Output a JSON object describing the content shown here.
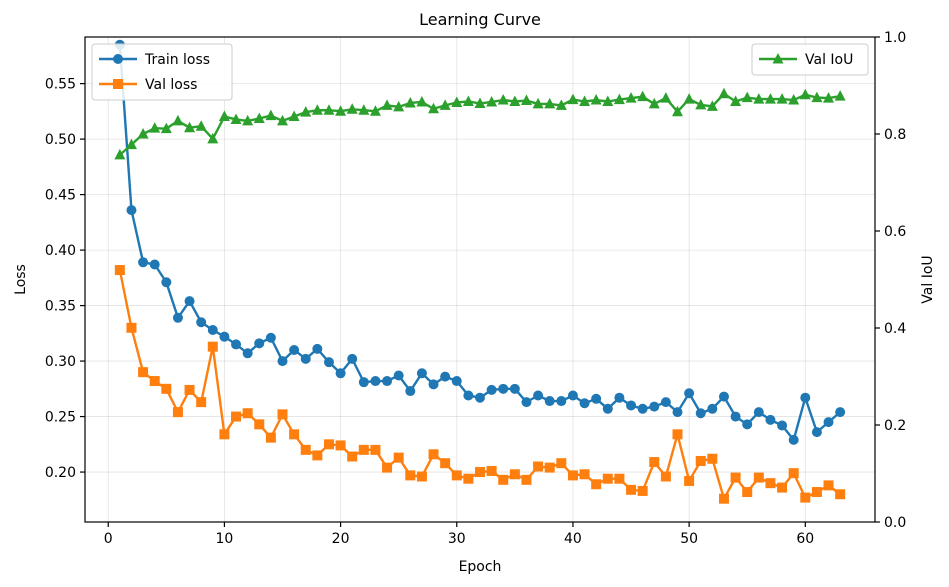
{
  "chart_data": {
    "type": "line",
    "title": "Learning Curve",
    "xlabel": "Epoch",
    "ylabel": "Loss",
    "y2label": "Val IoU",
    "xlim": [
      -2,
      66
    ],
    "ylim": [
      0.155,
      0.592
    ],
    "y2lim": [
      0.0,
      1.0
    ],
    "xticks": [
      0,
      10,
      20,
      30,
      40,
      50,
      60
    ],
    "yticks": [
      0.2,
      0.25,
      0.3,
      0.35,
      0.4,
      0.45,
      0.5,
      0.55
    ],
    "y2ticks": [
      0.0,
      0.2,
      0.4,
      0.6,
      0.8,
      1.0
    ],
    "grid": true,
    "x": [
      1,
      2,
      3,
      4,
      5,
      6,
      7,
      8,
      9,
      10,
      11,
      12,
      13,
      14,
      15,
      16,
      17,
      18,
      19,
      20,
      21,
      22,
      23,
      24,
      25,
      26,
      27,
      28,
      29,
      30,
      31,
      32,
      33,
      34,
      35,
      36,
      37,
      38,
      39,
      40,
      41,
      42,
      43,
      44,
      45,
      46,
      47,
      48,
      49,
      50,
      51,
      52,
      53,
      54,
      55,
      56,
      57,
      58,
      59,
      60,
      61,
      62,
      63
    ],
    "series": [
      {
        "name": "Train loss",
        "axis": "left",
        "color": "#1f77b4",
        "marker": "circle",
        "values": [
          0.585,
          0.436,
          0.389,
          0.387,
          0.371,
          0.339,
          0.354,
          0.335,
          0.328,
          0.322,
          0.315,
          0.307,
          0.316,
          0.321,
          0.3,
          0.31,
          0.302,
          0.311,
          0.299,
          0.289,
          0.302,
          0.281,
          0.282,
          0.282,
          0.287,
          0.273,
          0.289,
          0.279,
          0.286,
          0.282,
          0.269,
          0.267,
          0.274,
          0.275,
          0.275,
          0.263,
          0.269,
          0.264,
          0.264,
          0.269,
          0.262,
          0.266,
          0.257,
          0.267,
          0.26,
          0.257,
          0.259,
          0.263,
          0.254,
          0.271,
          0.253,
          0.257,
          0.268,
          0.25,
          0.243,
          0.254,
          0.247,
          0.242,
          0.229,
          0.267,
          0.236,
          0.245,
          0.254
        ]
      },
      {
        "name": "Val loss",
        "axis": "left",
        "color": "#ff7f0e",
        "marker": "square",
        "values": [
          0.382,
          0.33,
          0.29,
          0.282,
          0.275,
          0.254,
          0.274,
          0.263,
          0.313,
          0.234,
          0.25,
          0.253,
          0.243,
          0.231,
          0.252,
          0.234,
          0.22,
          0.215,
          0.225,
          0.224,
          0.214,
          0.22,
          0.22,
          0.204,
          0.213,
          0.197,
          0.196,
          0.216,
          0.208,
          0.197,
          0.194,
          0.2,
          0.201,
          0.193,
          0.198,
          0.193,
          0.205,
          0.204,
          0.208,
          0.197,
          0.198,
          0.189,
          0.194,
          0.194,
          0.184,
          0.183,
          0.209,
          0.196,
          0.234,
          0.192,
          0.21,
          0.212,
          0.176,
          0.195,
          0.182,
          0.195,
          0.19,
          0.186,
          0.199,
          0.177,
          0.182,
          0.188,
          0.18
        ]
      },
      {
        "name": "Val IoU",
        "axis": "right",
        "color": "#2ca02c",
        "marker": "triangle",
        "values": [
          0.757,
          0.778,
          0.8,
          0.812,
          0.811,
          0.827,
          0.813,
          0.816,
          0.79,
          0.836,
          0.83,
          0.827,
          0.832,
          0.838,
          0.827,
          0.836,
          0.845,
          0.849,
          0.849,
          0.847,
          0.851,
          0.849,
          0.847,
          0.859,
          0.856,
          0.864,
          0.866,
          0.852,
          0.859,
          0.865,
          0.867,
          0.863,
          0.866,
          0.87,
          0.867,
          0.869,
          0.862,
          0.862,
          0.859,
          0.871,
          0.867,
          0.87,
          0.867,
          0.871,
          0.874,
          0.877,
          0.862,
          0.874,
          0.846,
          0.872,
          0.86,
          0.857,
          0.883,
          0.867,
          0.875,
          0.872,
          0.872,
          0.872,
          0.87,
          0.881,
          0.875,
          0.874,
          0.878
        ]
      }
    ],
    "legends": {
      "left": {
        "position": "upper-left",
        "entries": [
          "Train loss",
          "Val loss"
        ]
      },
      "right": {
        "position": "upper-right",
        "entries": [
          "Val IoU"
        ]
      }
    },
    "colors": {
      "frame": "#000000",
      "grid": "#b0b0b0",
      "background": "#ffffff"
    }
  }
}
